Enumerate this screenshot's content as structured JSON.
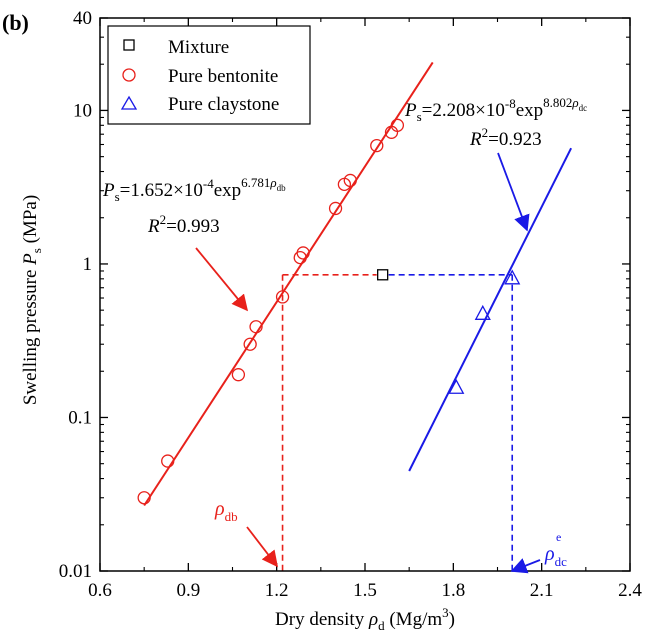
{
  "panel_label": "(b)",
  "chart_data": {
    "type": "scatter",
    "xlim": [
      0.6,
      2.4
    ],
    "ylim": [
      0.01,
      40
    ],
    "yscale": "log",
    "x_ticks": [
      0.6,
      0.9,
      1.2,
      1.5,
      1.8,
      2.1,
      2.4
    ],
    "x_tick_labels": [
      "0.6",
      "0.9",
      "1.2",
      "1.5",
      "1.8",
      "2.1",
      "2.4"
    ],
    "y_ticks": [
      0.01,
      0.1,
      1,
      10,
      40
    ],
    "y_tick_labels": [
      "0.01",
      "0.1",
      "1",
      "10",
      "40"
    ],
    "xlabel": {
      "main": "Dry density ",
      "sym": "ρ",
      "sub": "d",
      "unit_pre": " (Mg/m",
      "unit_sup": "3",
      "unit_post": ")"
    },
    "ylabel": {
      "main": "Swelling pressure ",
      "sym": "P",
      "sub": "s",
      "unit": " (MPa)"
    },
    "legend": {
      "placement": "top-left",
      "entries": [
        {
          "label": "Mixture",
          "marker": "square",
          "color": "#000000"
        },
        {
          "label": "Pure bentonite",
          "marker": "circle",
          "color": "#e8211b"
        },
        {
          "label": "Pure claystone",
          "marker": "triangle",
          "color": "#1a1ae6"
        }
      ]
    },
    "series": [
      {
        "name": "Mixture",
        "marker": "square",
        "color": "#000000",
        "points": [
          {
            "x": 1.56,
            "y": 0.85
          }
        ]
      },
      {
        "name": "Pure bentonite",
        "marker": "circle",
        "color": "#e8211b",
        "points": [
          {
            "x": 0.75,
            "y": 0.03
          },
          {
            "x": 0.83,
            "y": 0.052
          },
          {
            "x": 1.07,
            "y": 0.19
          },
          {
            "x": 1.11,
            "y": 0.3
          },
          {
            "x": 1.13,
            "y": 0.39
          },
          {
            "x": 1.22,
            "y": 0.61
          },
          {
            "x": 1.28,
            "y": 1.1
          },
          {
            "x": 1.29,
            "y": 1.18
          },
          {
            "x": 1.4,
            "y": 2.3
          },
          {
            "x": 1.43,
            "y": 3.3
          },
          {
            "x": 1.45,
            "y": 3.5
          },
          {
            "x": 1.54,
            "y": 5.9
          },
          {
            "x": 1.59,
            "y": 7.2
          },
          {
            "x": 1.61,
            "y": 8.0
          }
        ]
      },
      {
        "name": "Pure claystone",
        "marker": "triangle",
        "color": "#1a1ae6",
        "points": [
          {
            "x": 1.81,
            "y": 0.155
          },
          {
            "x": 1.9,
            "y": 0.47
          },
          {
            "x": 2.0,
            "y": 0.8
          }
        ]
      }
    ],
    "fits": [
      {
        "name": "Pure bentonite fit",
        "color": "#e8211b",
        "coef": 0.0001652,
        "rate": 6.781,
        "x_range": [
          0.75,
          1.73
        ],
        "equation": {
          "lhs": "P",
          "lhs_sub": "s",
          "mid": "=1.652×10",
          "exp1": "-4",
          "post": "exp",
          "exp2": "6.781",
          "exp2_sym": "ρ",
          "exp2_sub": "db"
        },
        "r2": {
          "sym": "R",
          "sup": "2",
          "value": "=0.993"
        }
      },
      {
        "name": "Pure claystone fit",
        "color": "#1a1ae6",
        "coef": 2.208e-08,
        "rate": 8.802,
        "x_range": [
          1.65,
          2.2
        ],
        "equation": {
          "lhs": "P",
          "lhs_sub": "s",
          "mid": "=2.208×10",
          "exp1": "-8",
          "post": "exp",
          "exp2": "8.802",
          "exp2_sym": "ρ",
          "exp2_sub": "dc",
          "exp2_sup": "e"
        },
        "r2": {
          "sym": "R",
          "sup": "2",
          "value": "=0.923"
        }
      }
    ],
    "guides": {
      "y_level": 0.85,
      "rho_db_x": 1.22,
      "rho_dc_x": 2.0,
      "mixture_x": 1.56
    },
    "annotations": [
      {
        "sym": "ρ",
        "sub": "db",
        "color": "#e8211b"
      },
      {
        "sym": "ρ",
        "sub": "dc",
        "sup": "e",
        "color": "#1a1ae6"
      }
    ]
  }
}
